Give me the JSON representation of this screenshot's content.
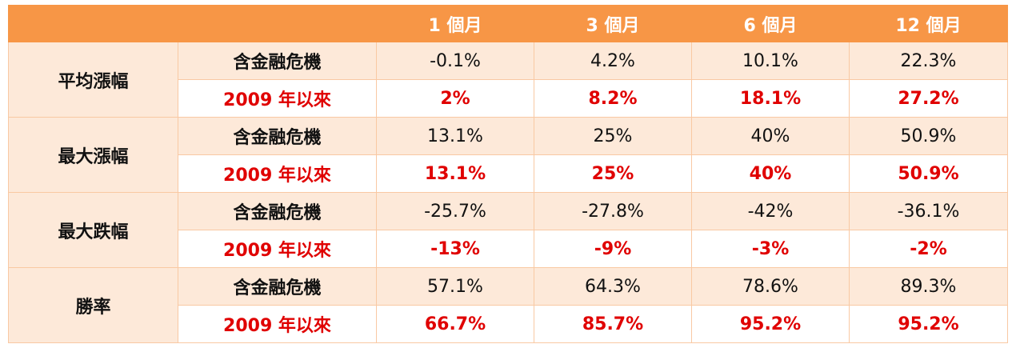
{
  "header": {
    "corner": "",
    "periods": [
      "1 個月",
      "3 個月",
      "6 個月",
      "12 個月"
    ]
  },
  "groups": [
    {
      "label": "平均漲幅",
      "rows": [
        {
          "sub": "含金融危機",
          "values": [
            "-0.1%",
            "4.2%",
            "10.1%",
            "22.3%"
          ]
        },
        {
          "sub": "2009 年以來",
          "values": [
            "2%",
            "8.2%",
            "18.1%",
            "27.2%"
          ]
        }
      ]
    },
    {
      "label": "最大漲幅",
      "rows": [
        {
          "sub": "含金融危機",
          "values": [
            "13.1%",
            "25%",
            "40%",
            "50.9%"
          ]
        },
        {
          "sub": "2009 年以來",
          "values": [
            "13.1%",
            "25%",
            "40%",
            "50.9%"
          ]
        }
      ]
    },
    {
      "label": "最大跌幅",
      "rows": [
        {
          "sub": "含金融危機",
          "values": [
            "-25.7%",
            "-27.8%",
            "-42%",
            "-36.1%"
          ]
        },
        {
          "sub": "2009 年以來",
          "values": [
            "-13%",
            "-9%",
            "-3%",
            "-2%"
          ]
        }
      ]
    },
    {
      "label": "勝率",
      "rows": [
        {
          "sub": "含金融危機",
          "values": [
            "57.1%",
            "64.3%",
            "78.6%",
            "89.3%"
          ]
        },
        {
          "sub": "2009 年以來",
          "values": [
            "66.7%",
            "85.7%",
            "95.2%",
            "95.2%"
          ]
        }
      ]
    }
  ],
  "colors": {
    "header_bg": "#f79646",
    "header_text": "#ffffff",
    "band_bg": "#fde9d9",
    "highlight_text": "#e00000"
  }
}
